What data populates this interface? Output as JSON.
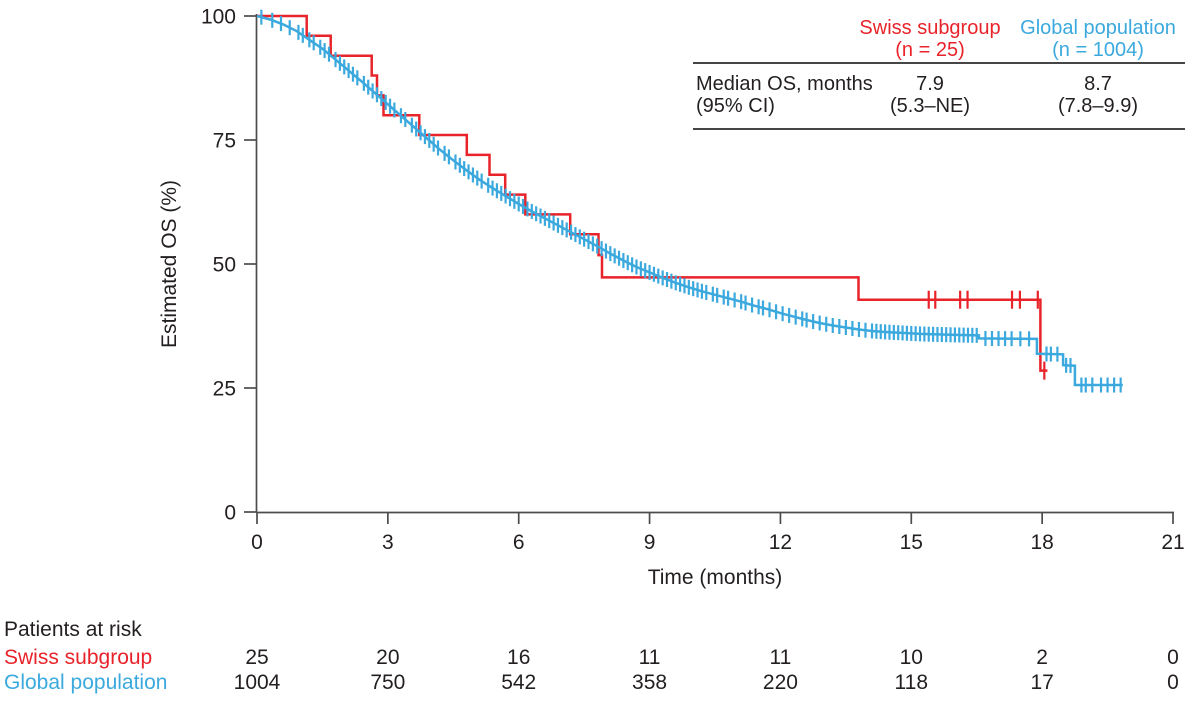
{
  "palette": {
    "red": "#e8232a",
    "blue": "#3ba9de",
    "ink": "#231f20",
    "axis": "#4c4c4e"
  },
  "summary_table": {
    "row_label_line1": "Median OS, months",
    "row_label_line2": "(95% CI)",
    "col1": {
      "header_line1": "Swiss subgroup",
      "header_line2": "(n = 25)",
      "value": "7.9",
      "ci": "(5.3–NE)"
    },
    "col2": {
      "header_line1": "Global population",
      "header_line2": "(n = 1004)",
      "value": "8.7",
      "ci": "(7.8–9.9)"
    }
  },
  "chart_data": {
    "type": "line",
    "subtype": "kaplan-meier",
    "title": "",
    "xlabel": "Time (months)",
    "ylabel": "Estimated OS (%)",
    "xlim": [
      0,
      21
    ],
    "ylim": [
      0,
      100
    ],
    "xticks": [
      0,
      3,
      6,
      9,
      12,
      15,
      18,
      21
    ],
    "yticks": [
      0,
      25,
      50,
      75,
      100
    ],
    "grid": false,
    "legend_position": "top-right-table",
    "series": [
      {
        "name": "Swiss subgroup",
        "n": 25,
        "color_key": "red",
        "mode": "step",
        "median_os": "7.9",
        "ci_95": "5.3–NE",
        "points": [
          [
            0,
            100
          ],
          [
            1.14,
            96
          ],
          [
            1.69,
            92
          ],
          [
            2.63,
            88
          ],
          [
            2.75,
            84
          ],
          [
            2.9,
            80
          ],
          [
            3.72,
            76
          ],
          [
            4.81,
            72
          ],
          [
            5.33,
            68
          ],
          [
            5.69,
            64
          ],
          [
            6.15,
            60
          ],
          [
            7.18,
            56
          ],
          [
            7.83,
            51.8
          ],
          [
            7.91,
            47.3
          ],
          [
            13.79,
            42.8
          ],
          [
            17.96,
            28.5
          ]
        ],
        "end_time": 18.12,
        "censor_times": [
          15.4,
          15.55,
          16.12,
          16.29,
          17.31,
          17.49,
          17.9,
          18.05
        ]
      },
      {
        "name": "Global population",
        "n": 1004,
        "color_key": "blue",
        "mode": "linear",
        "median_os": "8.7",
        "ci_95": "7.8–9.9",
        "points": [
          [
            0,
            100
          ],
          [
            0.3,
            99.3
          ],
          [
            0.6,
            98.3
          ],
          [
            0.9,
            97.0
          ],
          [
            1.2,
            95.2
          ],
          [
            1.5,
            93.4
          ],
          [
            1.8,
            91.2
          ],
          [
            2.1,
            89.0
          ],
          [
            2.4,
            86.8
          ],
          [
            2.7,
            84.5
          ],
          [
            3.0,
            82.2
          ],
          [
            3.3,
            79.9
          ],
          [
            3.6,
            77.6
          ],
          [
            3.9,
            75.3
          ],
          [
            4.2,
            73.0
          ],
          [
            4.5,
            70.9
          ],
          [
            4.8,
            68.9
          ],
          [
            5.1,
            67.0
          ],
          [
            5.4,
            65.3
          ],
          [
            5.7,
            63.7
          ],
          [
            6.0,
            62.1
          ],
          [
            6.3,
            60.6
          ],
          [
            6.6,
            59.2
          ],
          [
            6.9,
            57.8
          ],
          [
            7.2,
            56.4
          ],
          [
            7.5,
            55.0
          ],
          [
            7.8,
            53.6
          ],
          [
            8.1,
            52.1
          ],
          [
            8.4,
            50.7
          ],
          [
            8.7,
            49.4
          ],
          [
            9.0,
            48.3
          ],
          [
            9.3,
            47.2
          ],
          [
            9.6,
            46.2
          ],
          [
            9.9,
            45.3
          ],
          [
            10.2,
            44.5
          ],
          [
            10.5,
            43.8
          ],
          [
            10.8,
            43.1
          ],
          [
            11.1,
            42.4
          ],
          [
            11.4,
            41.6
          ],
          [
            11.7,
            40.9
          ],
          [
            12.0,
            40.1
          ],
          [
            12.3,
            39.4
          ],
          [
            12.6,
            38.7
          ],
          [
            12.9,
            38.1
          ],
          [
            13.2,
            37.6
          ],
          [
            13.5,
            37.2
          ],
          [
            13.8,
            36.8
          ],
          [
            14.1,
            36.5
          ],
          [
            14.4,
            36.3
          ],
          [
            14.8,
            36.1
          ],
          [
            15.2,
            35.9
          ],
          [
            15.6,
            35.8
          ],
          [
            16.0,
            35.7
          ],
          [
            16.55,
            35.6
          ],
          [
            16.55,
            35.0
          ],
          [
            17.88,
            34.9
          ],
          [
            17.88,
            31.9
          ],
          [
            18.48,
            31.8
          ],
          [
            18.48,
            29.6
          ],
          [
            18.75,
            29.5
          ],
          [
            18.75,
            25.6
          ],
          [
            19.85,
            25.6
          ]
        ],
        "end_time": 19.85,
        "censor_times": [
          0.1,
          0.35,
          0.55,
          0.75,
          0.95,
          1.05,
          1.2,
          1.3,
          1.45,
          1.55,
          1.65,
          1.8,
          1.9,
          2.0,
          2.1,
          2.2,
          2.3,
          2.45,
          2.55,
          2.65,
          2.75,
          2.85,
          2.95,
          3.05,
          3.15,
          3.3,
          3.4,
          3.55,
          3.65,
          3.75,
          3.85,
          3.95,
          4.05,
          4.15,
          4.3,
          4.4,
          4.55,
          4.65,
          4.75,
          4.85,
          4.95,
          5.05,
          5.15,
          5.3,
          5.4,
          5.5,
          5.6,
          5.7,
          5.8,
          5.9,
          6.0,
          6.1,
          6.2,
          6.3,
          6.4,
          6.5,
          6.6,
          6.7,
          6.8,
          6.9,
          7.0,
          7.1,
          7.2,
          7.3,
          7.4,
          7.5,
          7.6,
          7.7,
          7.8,
          7.9,
          8.0,
          8.1,
          8.2,
          8.3,
          8.4,
          8.5,
          8.6,
          8.7,
          8.8,
          8.9,
          9.0,
          9.1,
          9.2,
          9.3,
          9.4,
          9.5,
          9.6,
          9.7,
          9.8,
          9.9,
          10.0,
          10.1,
          10.2,
          10.3,
          10.45,
          10.55,
          10.7,
          10.8,
          10.95,
          11.1,
          11.2,
          11.35,
          11.5,
          11.6,
          11.75,
          11.9,
          12.05,
          12.2,
          12.35,
          12.5,
          12.6,
          12.75,
          12.9,
          13.05,
          13.2,
          13.35,
          13.5,
          13.65,
          13.8,
          13.95,
          14.1,
          14.2,
          14.3,
          14.4,
          14.5,
          14.6,
          14.7,
          14.8,
          14.9,
          15.0,
          15.1,
          15.2,
          15.3,
          15.4,
          15.5,
          15.6,
          15.7,
          15.8,
          15.9,
          16.0,
          16.1,
          16.2,
          16.3,
          16.4,
          16.5,
          16.7,
          16.85,
          17.0,
          17.15,
          17.3,
          17.5,
          17.7,
          18.1,
          18.2,
          18.35,
          18.55,
          18.65,
          18.9,
          19.0,
          19.15,
          19.35,
          19.5,
          19.65,
          19.8
        ]
      }
    ],
    "at_risk": {
      "title": "Patients at risk",
      "times": [
        0,
        3,
        6,
        9,
        12,
        15,
        18,
        21
      ],
      "rows": [
        {
          "name": "Swiss subgroup",
          "color_key": "red",
          "counts": [
            25,
            20,
            16,
            11,
            11,
            10,
            2,
            0
          ]
        },
        {
          "name": "Global population",
          "color_key": "blue",
          "counts": [
            1004,
            750,
            542,
            358,
            220,
            118,
            17,
            0
          ]
        }
      ]
    }
  }
}
